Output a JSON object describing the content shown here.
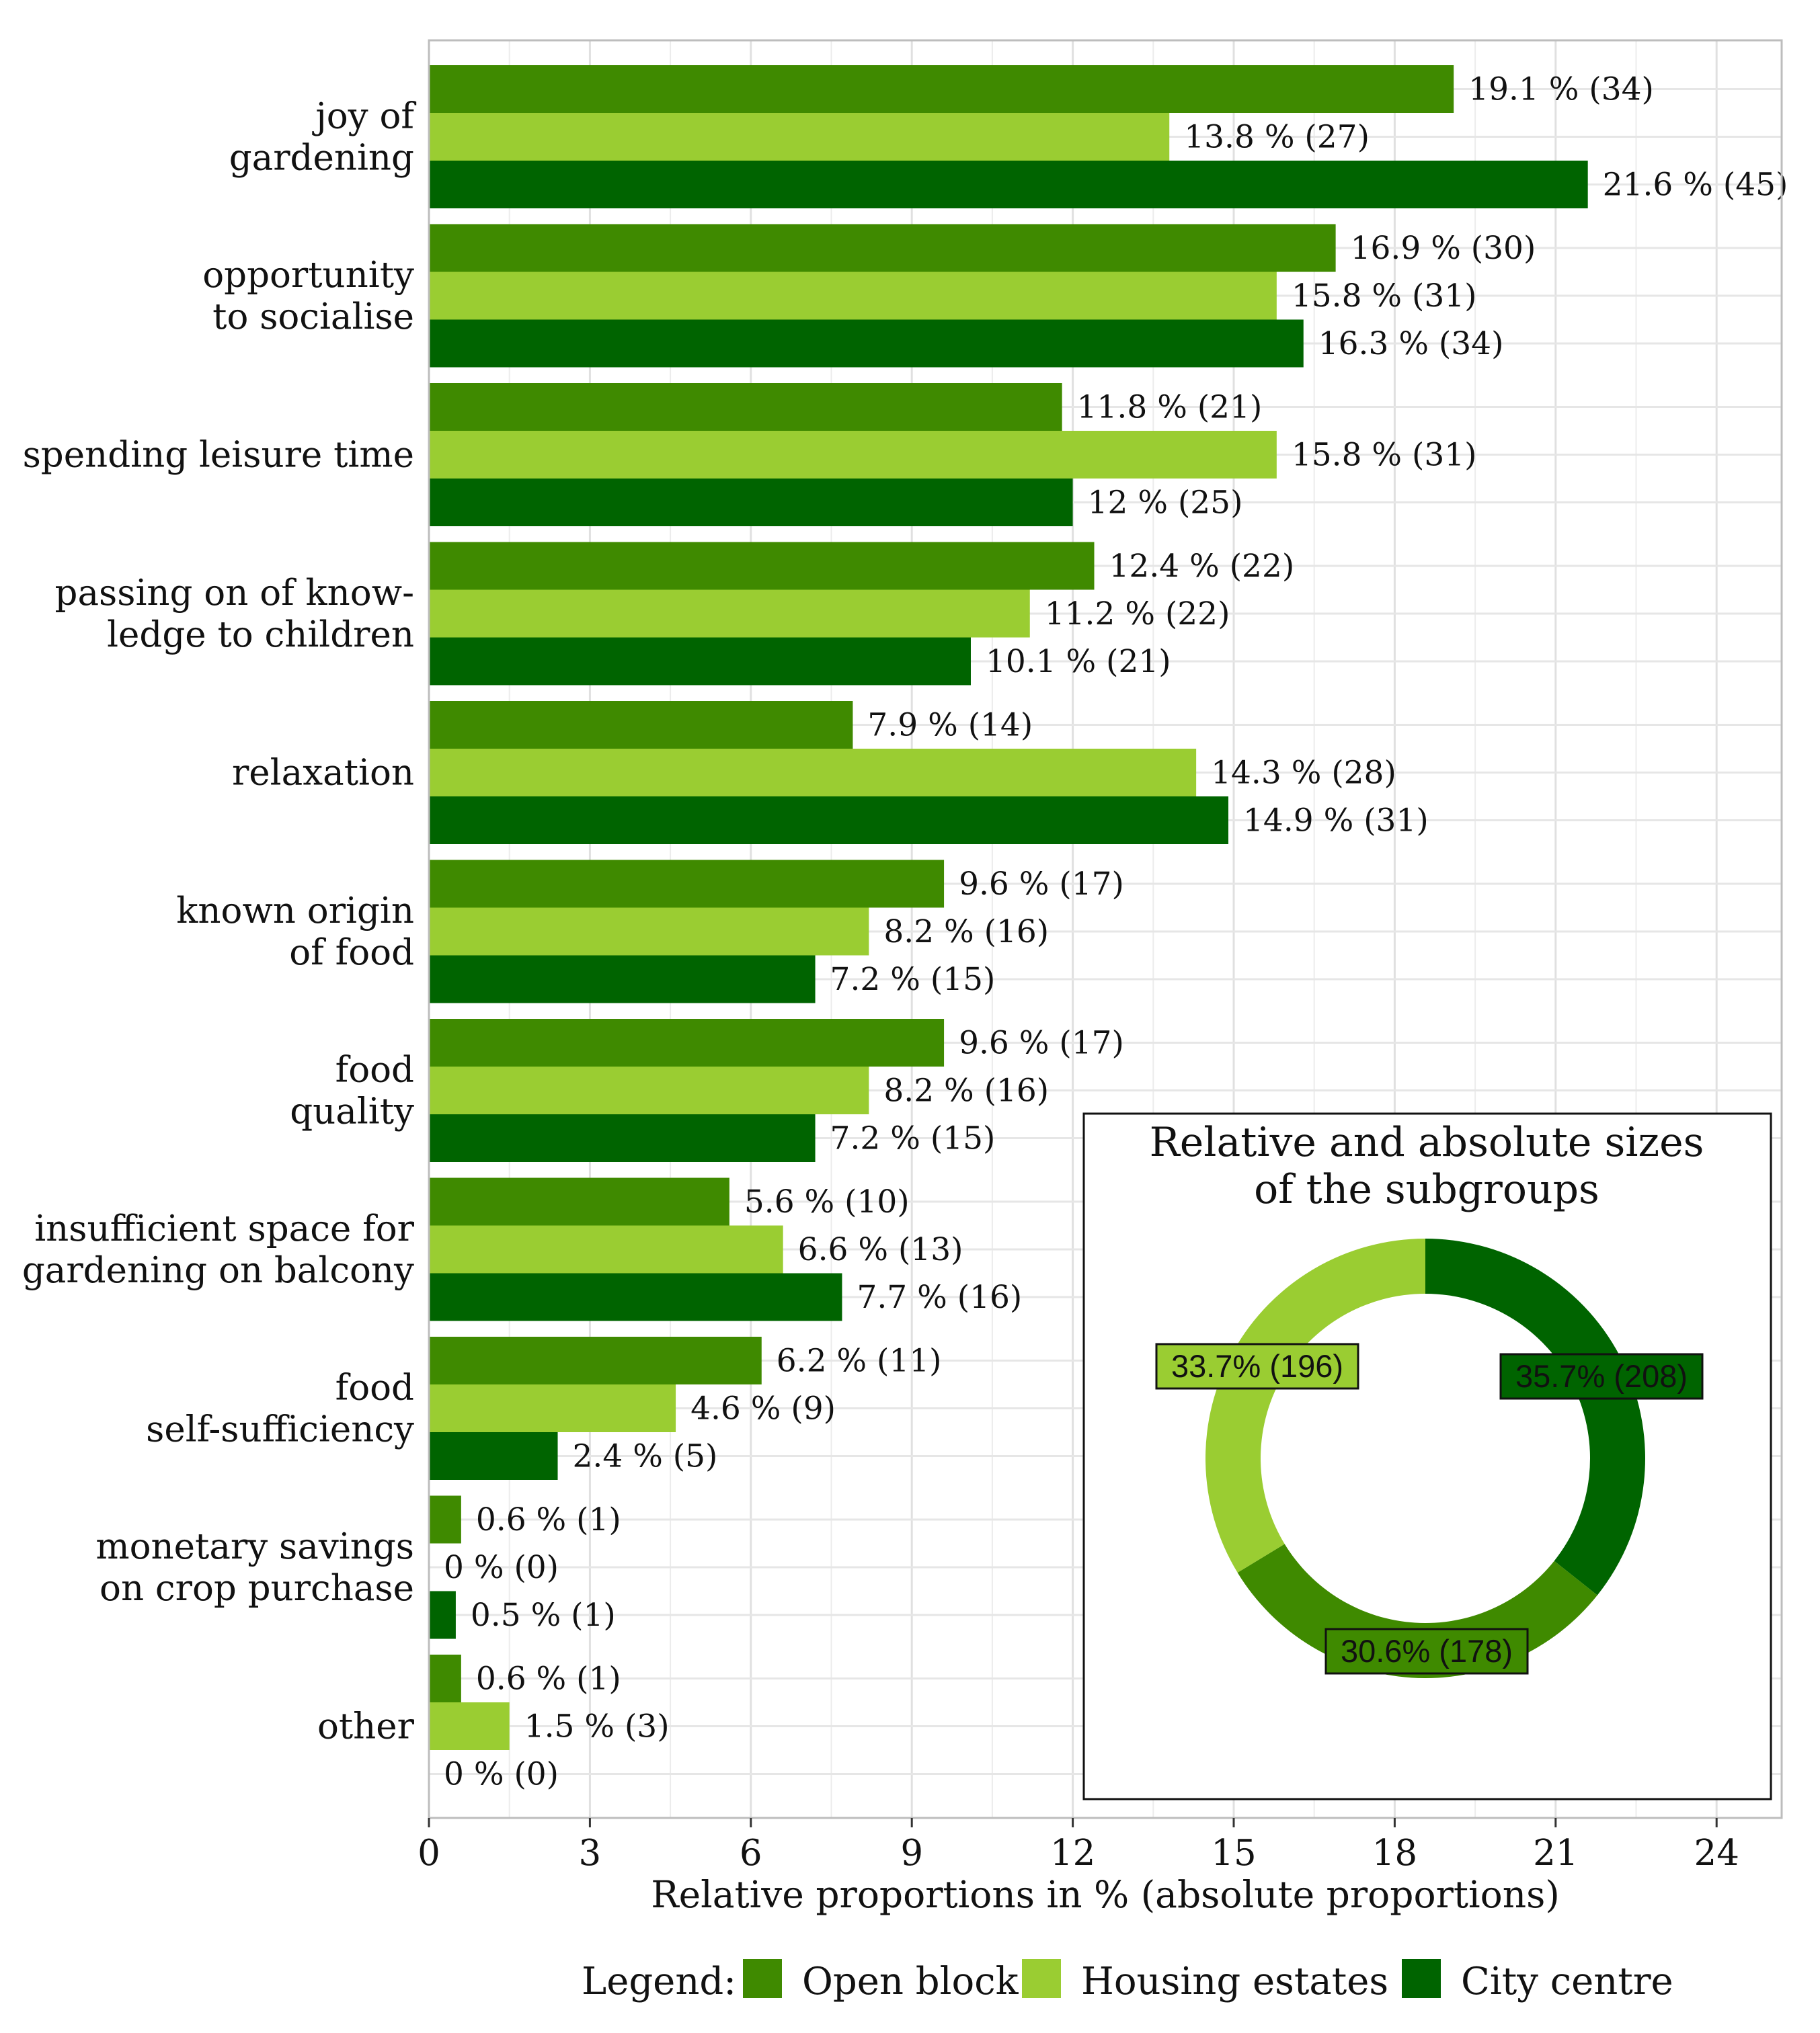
{
  "chart_data": {
    "type": "bar",
    "orientation": "horizontal",
    "xlabel": "Relative proportions in % (absolute proportions)",
    "xlim": [
      0,
      25
    ],
    "xticks": [
      0,
      3,
      6,
      9,
      12,
      15,
      18,
      21,
      24
    ],
    "grid": true,
    "categories": [
      [
        "joy of",
        "gardening"
      ],
      [
        "opportunity",
        "to socialise"
      ],
      [
        "spending leisure time"
      ],
      [
        "passing on of know-",
        "ledge to children"
      ],
      [
        "relaxation"
      ],
      [
        "known origin",
        "of food"
      ],
      [
        "food",
        "quality"
      ],
      [
        "insufficient space for",
        "gardening on balcony"
      ],
      [
        "food",
        "self-sufficiency"
      ],
      [
        "monetary savings",
        "on crop purchase"
      ],
      [
        "other"
      ]
    ],
    "series": [
      {
        "name": "Open block",
        "color": "#3f8a00",
        "values": [
          19.1,
          16.9,
          11.8,
          12.4,
          7.9,
          9.6,
          9.6,
          5.6,
          6.2,
          0.6,
          0.6
        ],
        "labels": [
          "19.1 % (34)",
          "16.9 % (30)",
          "11.8 % (21)",
          "12.4 % (22)",
          "7.9 % (14)",
          "9.6 % (17)",
          "9.6 % (17)",
          "5.6 % (10)",
          "6.2 % (11)",
          "0.6 % (1)",
          "0.6 % (1)"
        ]
      },
      {
        "name": "Housing estates",
        "color": "#9acd32",
        "values": [
          13.8,
          15.8,
          15.8,
          11.2,
          14.3,
          8.2,
          8.2,
          6.6,
          4.6,
          0,
          1.5
        ],
        "labels": [
          "13.8 % (27)",
          "15.8 % (31)",
          "15.8 % (31)",
          "11.2 % (22)",
          "14.3 % (28)",
          "8.2 % (16)",
          "8.2 % (16)",
          "6.6 % (13)",
          "4.6 % (9)",
          "0 % (0)",
          "1.5 % (3)"
        ]
      },
      {
        "name": "City centre",
        "color": "#006400",
        "values": [
          21.6,
          16.3,
          12,
          10.1,
          14.9,
          7.2,
          7.2,
          7.7,
          2.4,
          0.5,
          0
        ],
        "labels": [
          "21.6 % (45)",
          "16.3 % (34)",
          "12 % (25)",
          "10.1 % (21)",
          "14.9 % (31)",
          "7.2 % (15)",
          "7.2 % (15)",
          "7.7 % (16)",
          "2.4 % (5)",
          "0.5 % (1)",
          "0 % (0)"
        ]
      }
    ],
    "legend": {
      "title": "Legend:",
      "placement": "bottom",
      "entries": [
        "Open block",
        "Housing estates",
        "City centre"
      ]
    },
    "inset": {
      "type": "pie",
      "title": [
        "Relative and absolute sizes",
        "of the subgroups"
      ],
      "slices": [
        {
          "name": "City centre",
          "value": 35.7,
          "label": "35.7% (208)",
          "color": "#006400"
        },
        {
          "name": "Open block",
          "value": 30.6,
          "label": "30.6% (178)",
          "color": "#3f8a00"
        },
        {
          "name": "Housing estates",
          "value": 33.7,
          "label": "33.7% (196)",
          "color": "#9acd32"
        }
      ]
    }
  }
}
